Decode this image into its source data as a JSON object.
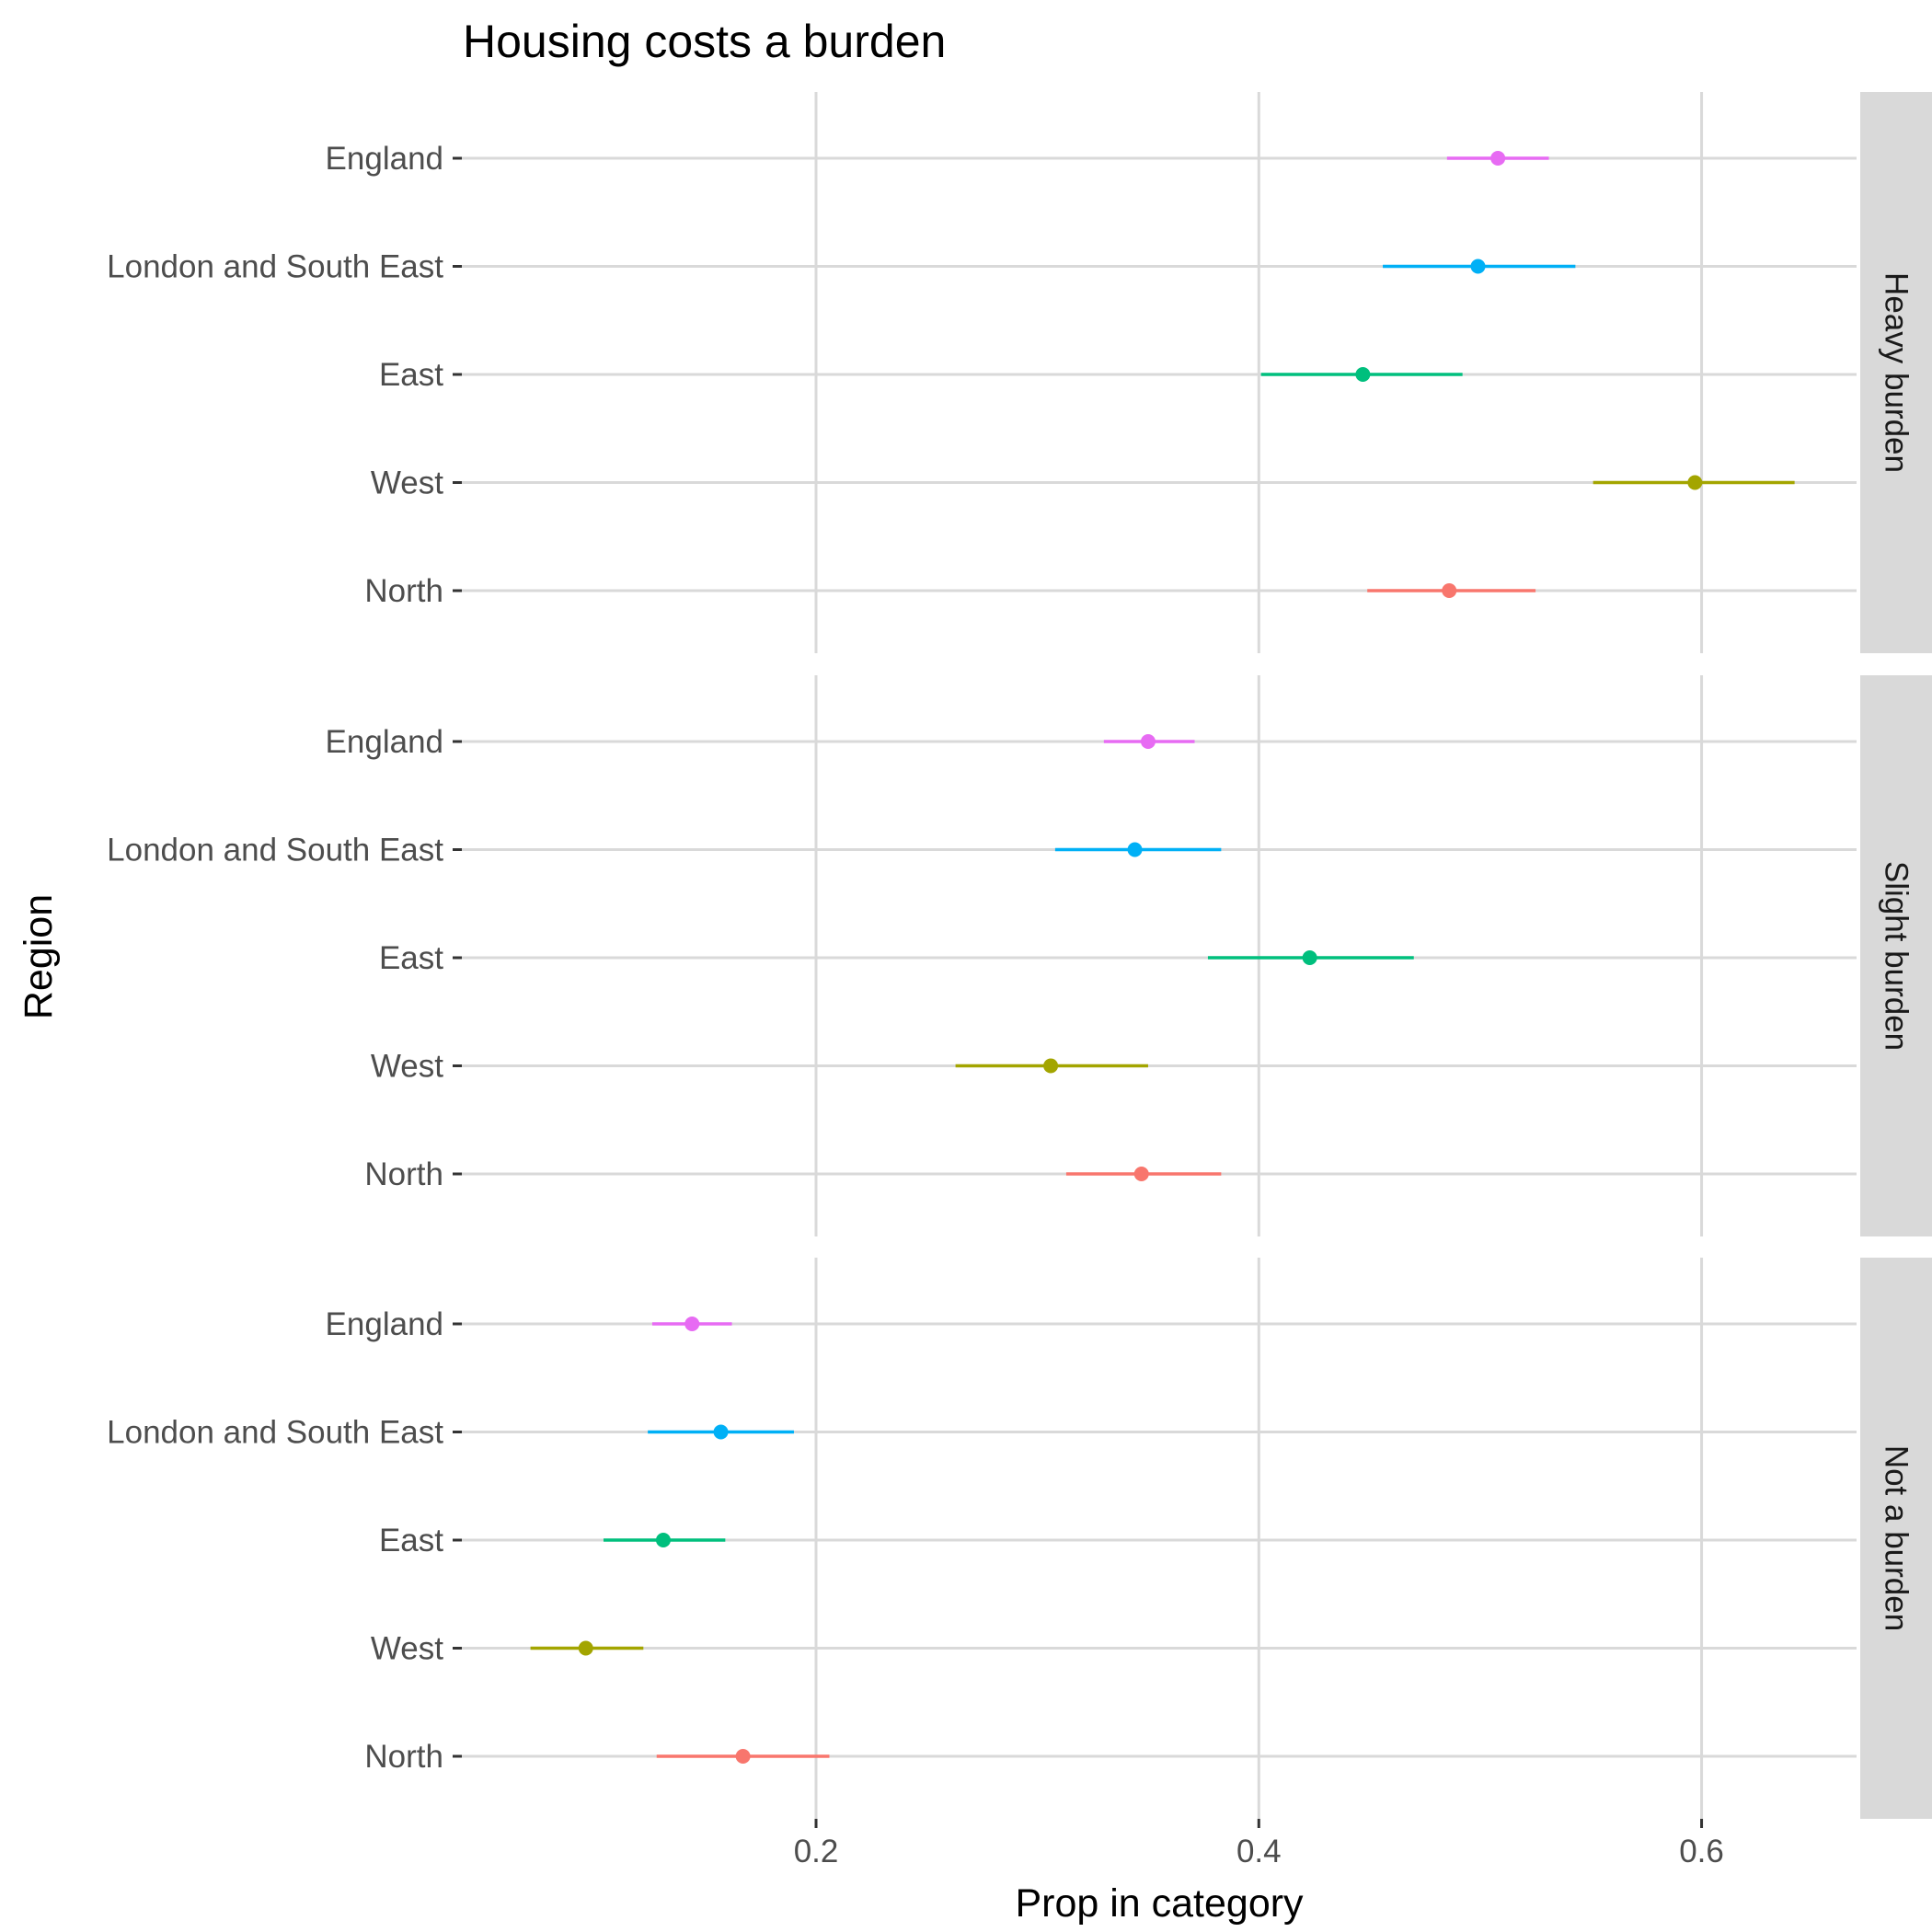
{
  "chart_data": {
    "type": "scatter",
    "title": "Housing costs a burden",
    "xlabel": "Prop in category",
    "ylabel": "Region",
    "xlim": [
      0.04,
      0.67
    ],
    "x_ticks": [
      0.2,
      0.4,
      0.6
    ],
    "x_tick_labels": [
      "0.2",
      "0.4",
      "0.6"
    ],
    "categories": [
      "England",
      "London and South East",
      "East",
      "West",
      "North"
    ],
    "grid": true,
    "legend": "none",
    "colors": {
      "England": "#E76BF3",
      "London and South East": "#00B0F6",
      "East": "#00BF7D",
      "West": "#A3A500",
      "North": "#F8766D"
    },
    "panels": [
      {
        "label": "Heavy burden",
        "series": [
          {
            "category": "England",
            "value": 0.508,
            "low": 0.485,
            "high": 0.531
          },
          {
            "category": "London and South East",
            "value": 0.499,
            "low": 0.456,
            "high": 0.543
          },
          {
            "category": "East",
            "value": 0.447,
            "low": 0.401,
            "high": 0.492
          },
          {
            "category": "West",
            "value": 0.597,
            "low": 0.551,
            "high": 0.642
          },
          {
            "category": "North",
            "value": 0.486,
            "low": 0.449,
            "high": 0.525
          }
        ]
      },
      {
        "label": "Slight burden",
        "series": [
          {
            "category": "England",
            "value": 0.35,
            "low": 0.33,
            "high": 0.371
          },
          {
            "category": "London and South East",
            "value": 0.344,
            "low": 0.308,
            "high": 0.383
          },
          {
            "category": "East",
            "value": 0.423,
            "low": 0.377,
            "high": 0.47
          },
          {
            "category": "West",
            "value": 0.306,
            "low": 0.263,
            "high": 0.35
          },
          {
            "category": "North",
            "value": 0.347,
            "low": 0.313,
            "high": 0.383
          }
        ]
      },
      {
        "label": "Not a burden",
        "series": [
          {
            "category": "England",
            "value": 0.144,
            "low": 0.126,
            "high": 0.162
          },
          {
            "category": "London and South East",
            "value": 0.157,
            "low": 0.124,
            "high": 0.19
          },
          {
            "category": "East",
            "value": 0.131,
            "low": 0.104,
            "high": 0.159
          },
          {
            "category": "West",
            "value": 0.096,
            "low": 0.071,
            "high": 0.122
          },
          {
            "category": "North",
            "value": 0.167,
            "low": 0.128,
            "high": 0.206
          }
        ]
      }
    ]
  }
}
